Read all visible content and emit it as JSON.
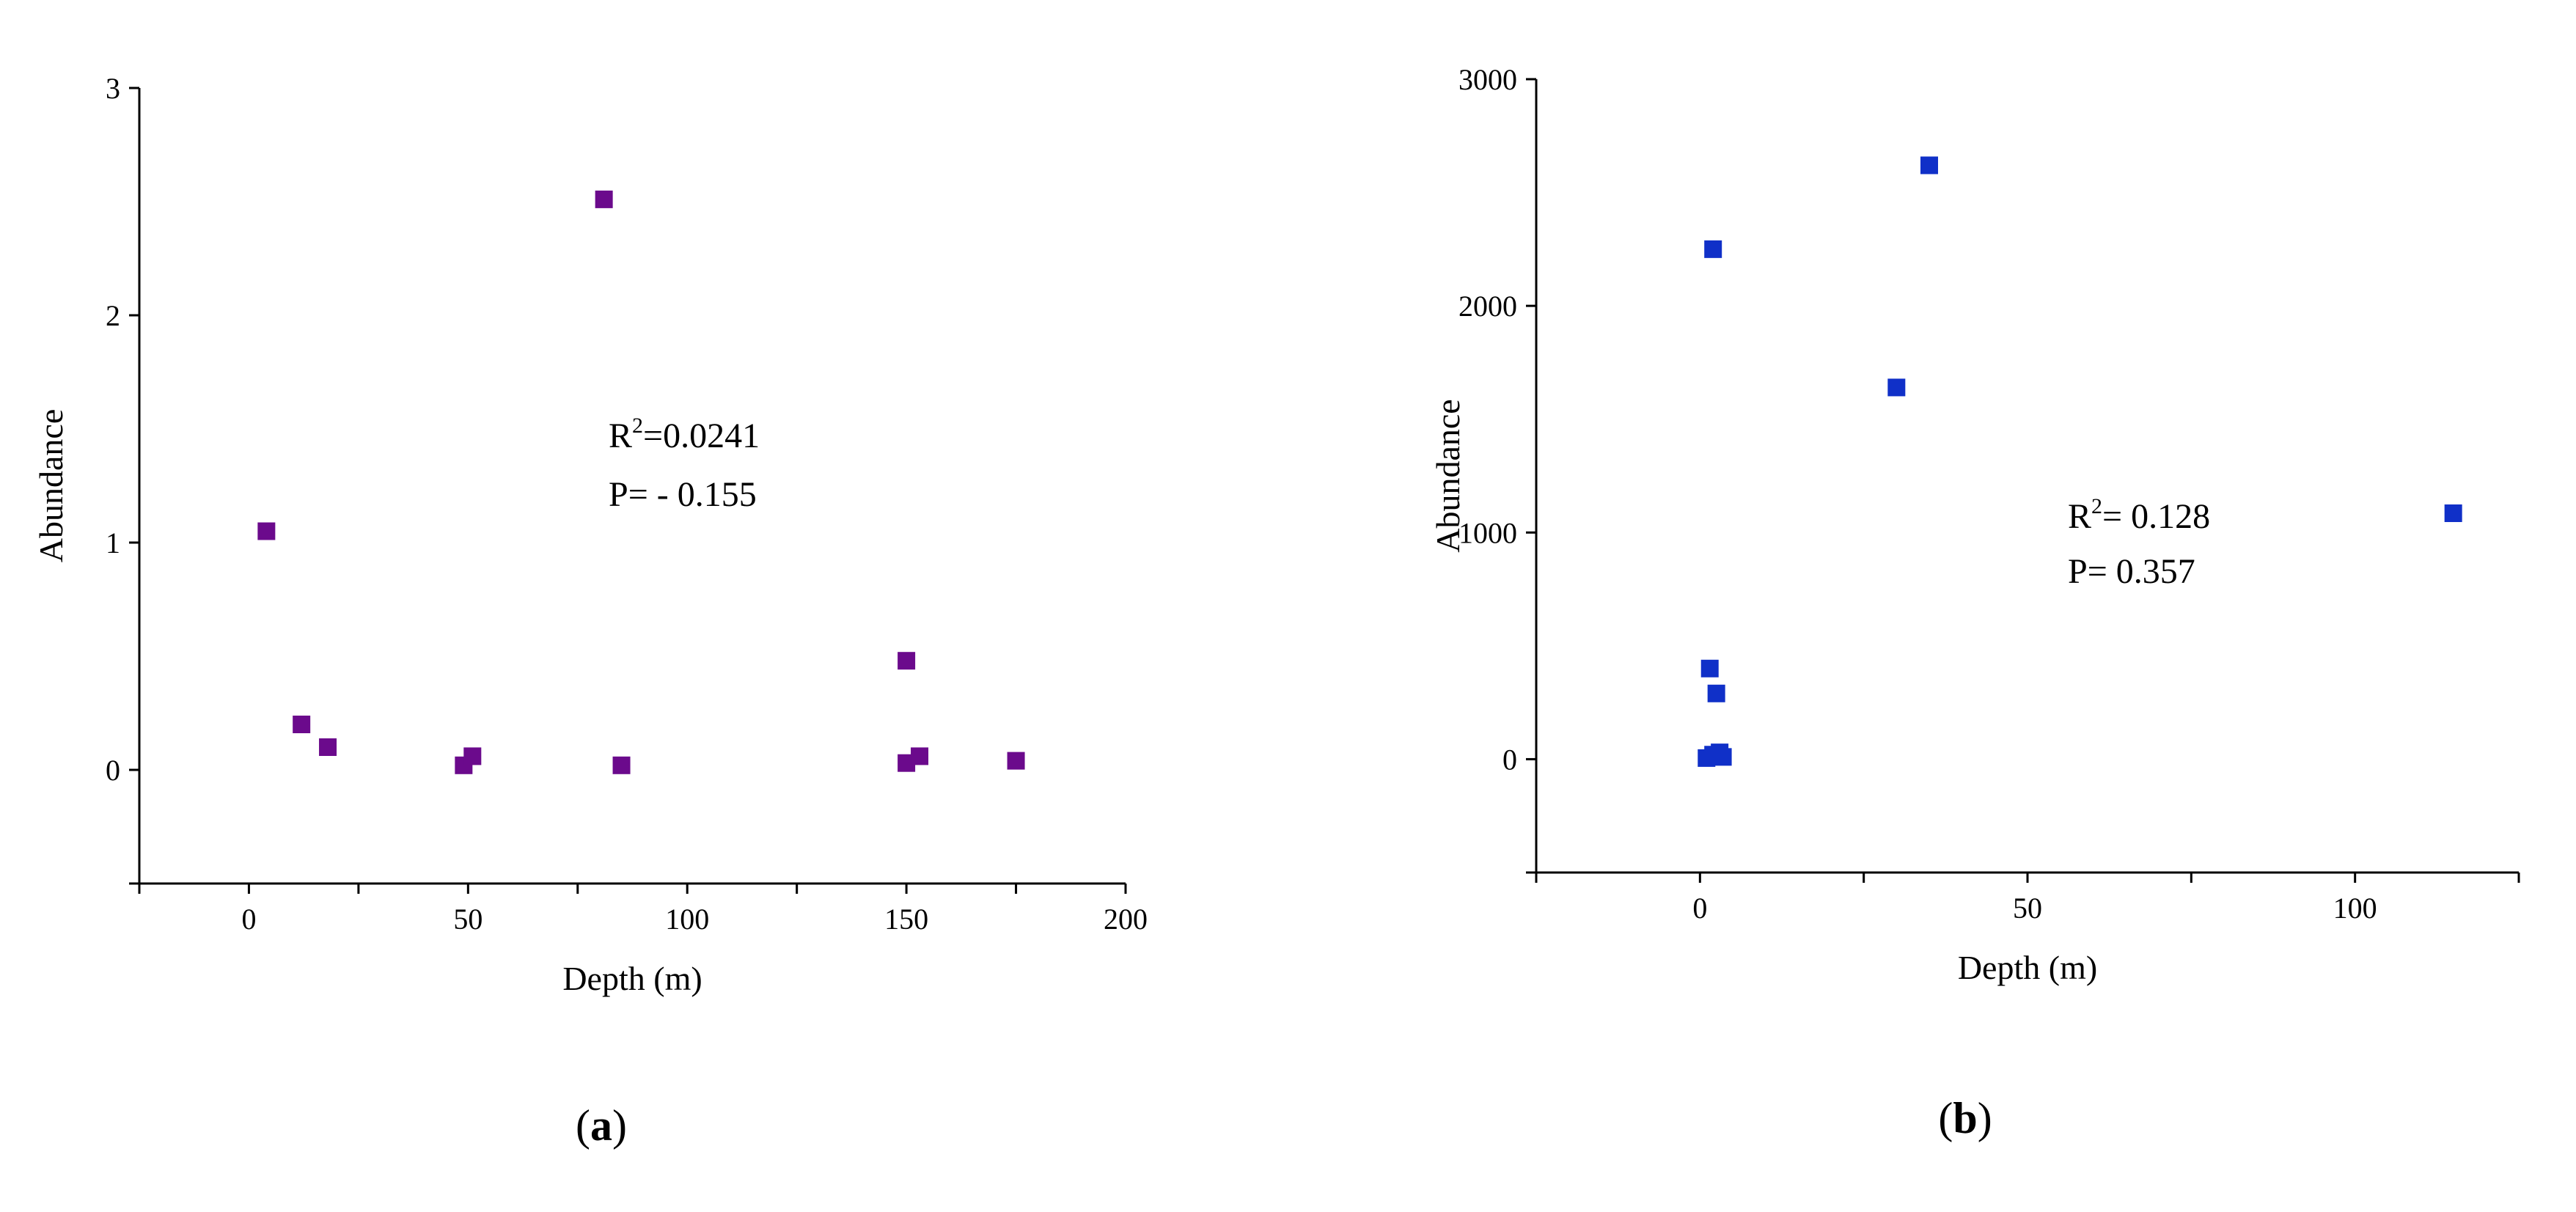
{
  "chart_data": [
    {
      "type": "scatter",
      "panel_label": {
        "open": "(",
        "letter": "a",
        "close": ")"
      },
      "title": "",
      "xlabel": "Depth (m)",
      "ylabel": "Abundance",
      "xlim": [
        -25,
        200
      ],
      "ylim": [
        -0.5,
        3
      ],
      "xticks": [
        0,
        50,
        100,
        150,
        200
      ],
      "yticks": [
        0,
        1,
        2,
        3
      ],
      "color": "#6b0a8c",
      "marker": "square",
      "annotation": {
        "r2_base": "R",
        "r2_sup": "2",
        "r2_value": "=0.0241",
        "p_text": "P= - 0.155"
      },
      "points": [
        {
          "x": 4,
          "y": 1.05
        },
        {
          "x": 12,
          "y": 0.2
        },
        {
          "x": 18,
          "y": 0.1
        },
        {
          "x": 49,
          "y": 0.02
        },
        {
          "x": 51,
          "y": 0.06
        },
        {
          "x": 81,
          "y": 2.51
        },
        {
          "x": 85,
          "y": 0.02
        },
        {
          "x": 150,
          "y": 0.48
        },
        {
          "x": 150,
          "y": 0.03
        },
        {
          "x": 153,
          "y": 0.06
        },
        {
          "x": 175,
          "y": 0.04
        }
      ]
    },
    {
      "type": "scatter",
      "panel_label": {
        "open": "(",
        "letter": "b",
        "close": ")"
      },
      "title": "",
      "xlabel": "Depth (m)",
      "ylabel": "Abundance",
      "xlim": [
        -25,
        125
      ],
      "ylim": [
        -500,
        3000
      ],
      "xticks": [
        0,
        50,
        100
      ],
      "yticks": [
        0,
        1000,
        2000,
        3000
      ],
      "color": "#1030c8",
      "marker": "square",
      "annotation": {
        "r2_base": "R",
        "r2_sup": "2",
        "r2_value": "= 0.128",
        "p_text": "P= 0.357"
      },
      "points": [
        {
          "x": 2,
          "y": 2250
        },
        {
          "x": 35,
          "y": 2620
        },
        {
          "x": 30,
          "y": 1640
        },
        {
          "x": 115,
          "y": 1085
        },
        {
          "x": 1.5,
          "y": 400
        },
        {
          "x": 2.5,
          "y": 290
        },
        {
          "x": 1,
          "y": 5
        },
        {
          "x": 2,
          "y": 20
        },
        {
          "x": 3,
          "y": 30
        },
        {
          "x": 3.5,
          "y": 10
        }
      ]
    }
  ]
}
